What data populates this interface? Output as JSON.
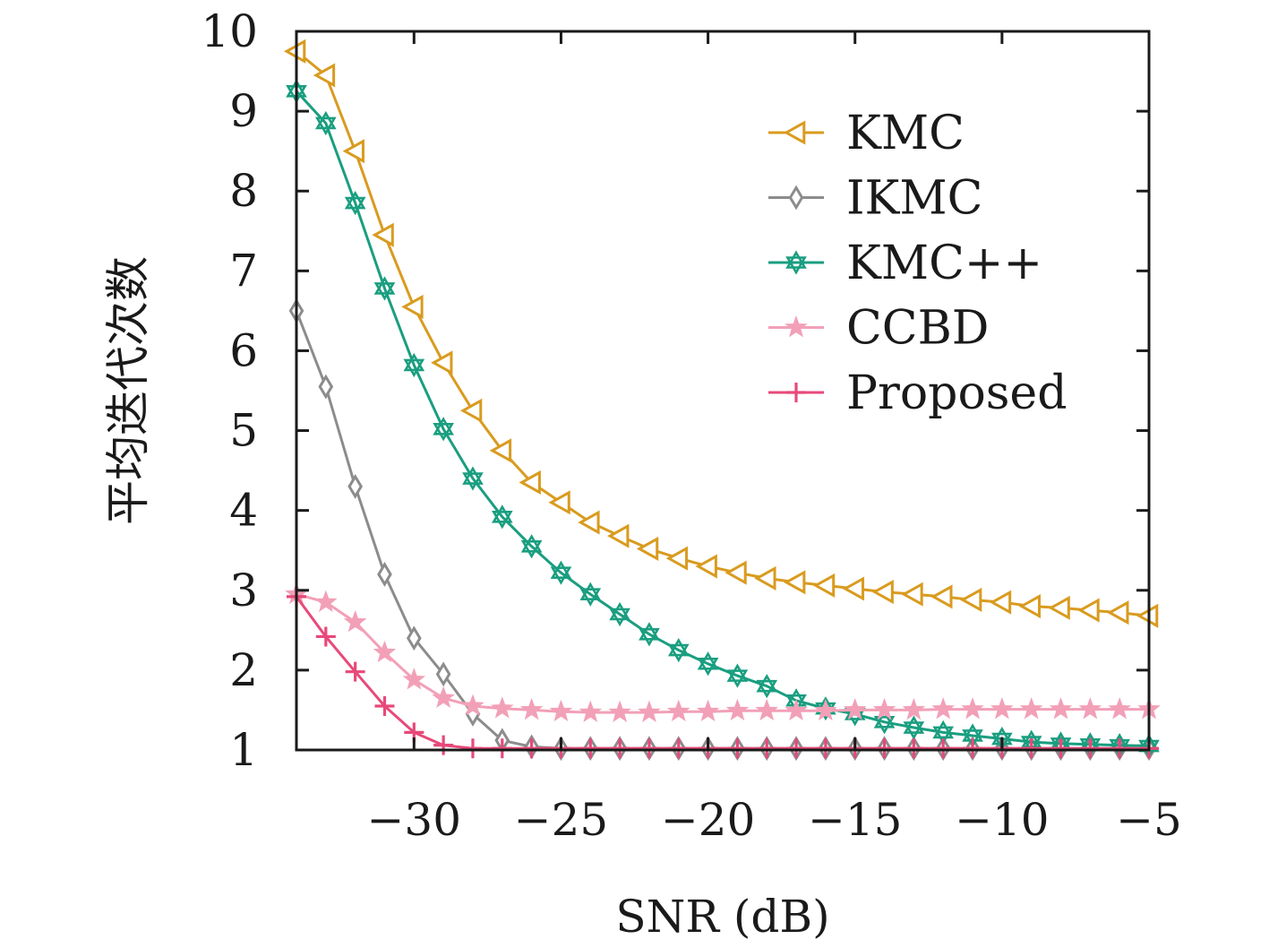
{
  "chart_data": {
    "type": "line",
    "xlabel": "SNR (dB)",
    "ylabel": "平均迭代次数",
    "xlim": [
      -34,
      -5
    ],
    "ylim": [
      1,
      10
    ],
    "xticks": [
      -30,
      -25,
      -20,
      -15,
      -10,
      -5
    ],
    "xtick_labels": [
      "−30",
      "−25",
      "−20",
      "−15",
      "−10",
      "−5"
    ],
    "yticks": [
      1,
      2,
      3,
      4,
      5,
      6,
      7,
      8,
      9,
      10
    ],
    "ytick_labels": [
      "1",
      "2",
      "3",
      "4",
      "5",
      "6",
      "7",
      "8",
      "9",
      "10"
    ],
    "legend_position": "top-right",
    "grid": false,
    "x": [
      -34,
      -33,
      -32,
      -31,
      -30,
      -29,
      -28,
      -27,
      -26,
      -25,
      -24,
      -23,
      -22,
      -21,
      -20,
      -19,
      -18,
      -17,
      -16,
      -15,
      -14,
      -13,
      -12,
      -11,
      -10,
      -9,
      -8,
      -7,
      -6,
      -5
    ],
    "series": [
      {
        "name": "KMC",
        "color": "#d99b1f",
        "marker": "triangle-left",
        "values": [
          9.75,
          9.45,
          8.5,
          7.45,
          6.55,
          5.85,
          5.25,
          4.75,
          4.35,
          4.1,
          3.85,
          3.68,
          3.52,
          3.4,
          3.3,
          3.22,
          3.15,
          3.1,
          3.06,
          3.02,
          2.98,
          2.95,
          2.92,
          2.88,
          2.85,
          2.8,
          2.78,
          2.75,
          2.72,
          2.68
        ]
      },
      {
        "name": "IKMC",
        "color": "#8c8c8c",
        "marker": "diamond",
        "values": [
          6.5,
          5.55,
          4.3,
          3.2,
          2.4,
          1.95,
          1.45,
          1.12,
          1.04,
          1.02,
          1.02,
          1.02,
          1.02,
          1.02,
          1.02,
          1.02,
          1.02,
          1.02,
          1.02,
          1.02,
          1.02,
          1.02,
          1.02,
          1.02,
          1.02,
          1.02,
          1.02,
          1.02,
          1.02,
          1.02
        ]
      },
      {
        "name": "KMC++",
        "color": "#1a9e80",
        "marker": "hexagram",
        "values": [
          9.25,
          8.85,
          7.85,
          6.78,
          5.82,
          5.02,
          4.4,
          3.92,
          3.55,
          3.22,
          2.95,
          2.7,
          2.45,
          2.25,
          2.08,
          1.93,
          1.8,
          1.62,
          1.52,
          1.45,
          1.35,
          1.28,
          1.22,
          1.18,
          1.14,
          1.1,
          1.08,
          1.07,
          1.06,
          1.05
        ]
      },
      {
        "name": "CCBD",
        "color": "#f2a0b8",
        "marker": "star",
        "values": [
          2.95,
          2.85,
          2.6,
          2.22,
          1.88,
          1.65,
          1.55,
          1.52,
          1.5,
          1.48,
          1.47,
          1.47,
          1.47,
          1.48,
          1.48,
          1.49,
          1.49,
          1.49,
          1.49,
          1.5,
          1.5,
          1.5,
          1.51,
          1.51,
          1.51,
          1.51,
          1.51,
          1.51,
          1.51,
          1.51
        ]
      },
      {
        "name": "Proposed",
        "color": "#e8497a",
        "marker": "plus",
        "values": [
          2.92,
          2.42,
          1.98,
          1.55,
          1.22,
          1.06,
          1.02,
          1.02,
          1.02,
          1.02,
          1.02,
          1.02,
          1.02,
          1.02,
          1.02,
          1.02,
          1.02,
          1.02,
          1.02,
          1.02,
          1.02,
          1.02,
          1.02,
          1.02,
          1.02,
          1.02,
          1.02,
          1.02,
          1.02,
          1.02
        ]
      }
    ]
  }
}
